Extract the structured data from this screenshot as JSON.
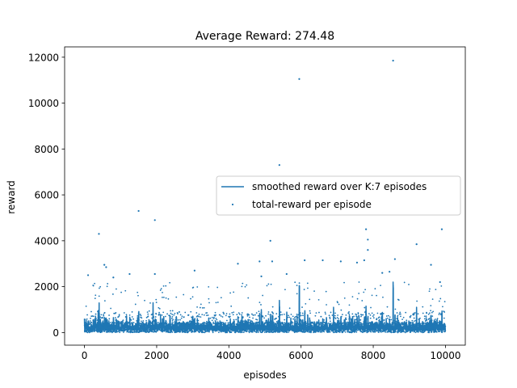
{
  "chart_data": {
    "type": "scatter",
    "title": "Average Reward: 274.48",
    "xlabel": "episodes",
    "ylabel": "reward",
    "xlim": [
      -550,
      10550
    ],
    "ylim": [
      -550,
      12450
    ],
    "xticks": [
      0,
      2000,
      4000,
      6000,
      8000,
      10000
    ],
    "xtick_labels": [
      "0",
      "2000",
      "4000",
      "6000",
      "8000",
      "10000"
    ],
    "yticks": [
      0,
      2000,
      4000,
      6000,
      8000,
      10000,
      12000
    ],
    "ytick_labels": [
      "0",
      "2000",
      "4000",
      "6000",
      "8000",
      "10000",
      "12000"
    ],
    "grid": false,
    "legend": {
      "placement": "center-right",
      "entries": [
        {
          "label": "smoothed reward over K:7 episodes",
          "marker": "line"
        },
        {
          "label": "total-reward per episode",
          "marker": "point"
        }
      ]
    },
    "colors": {
      "series": "#1f77b4",
      "axes": "#000000"
    },
    "episodes": 10000,
    "series": [
      {
        "name": "smoothed reward over K:7 episodes",
        "kind": "line",
        "spikes": [
          {
            "x": 380,
            "y": 950
          },
          {
            "x": 1900,
            "y": 1300
          },
          {
            "x": 4900,
            "y": 1000
          },
          {
            "x": 5400,
            "y": 1400
          },
          {
            "x": 5950,
            "y": 2050
          },
          {
            "x": 6900,
            "y": 1100
          },
          {
            "x": 7800,
            "y": 1150
          },
          {
            "x": 8550,
            "y": 2200
          },
          {
            "x": 9200,
            "y": 1100
          }
        ]
      },
      {
        "name": "total-reward per episode",
        "kind": "scatter",
        "outliers": [
          {
            "x": 8550,
            "y": 11850
          },
          {
            "x": 5950,
            "y": 11050
          },
          {
            "x": 5400,
            "y": 7300
          },
          {
            "x": 1500,
            "y": 5300
          },
          {
            "x": 1950,
            "y": 4900
          },
          {
            "x": 7800,
            "y": 4500
          },
          {
            "x": 9900,
            "y": 4500
          },
          {
            "x": 400,
            "y": 4300
          },
          {
            "x": 7850,
            "y": 4050
          },
          {
            "x": 5150,
            "y": 4000
          },
          {
            "x": 9200,
            "y": 3850
          },
          {
            "x": 7850,
            "y": 3600
          },
          {
            "x": 4250,
            "y": 3000
          },
          {
            "x": 550,
            "y": 2950
          },
          {
            "x": 600,
            "y": 2850
          },
          {
            "x": 4850,
            "y": 3100
          },
          {
            "x": 5200,
            "y": 3100
          },
          {
            "x": 6600,
            "y": 3150
          },
          {
            "x": 7100,
            "y": 3100
          },
          {
            "x": 7550,
            "y": 3050
          },
          {
            "x": 7750,
            "y": 3150
          },
          {
            "x": 8600,
            "y": 3200
          },
          {
            "x": 9600,
            "y": 2950
          },
          {
            "x": 3050,
            "y": 2700
          },
          {
            "x": 1250,
            "y": 2550
          },
          {
            "x": 100,
            "y": 2500
          },
          {
            "x": 800,
            "y": 2400
          },
          {
            "x": 1950,
            "y": 2550
          },
          {
            "x": 5600,
            "y": 2550
          },
          {
            "x": 6100,
            "y": 3150
          },
          {
            "x": 8250,
            "y": 2600
          },
          {
            "x": 8450,
            "y": 2650
          },
          {
            "x": 9850,
            "y": 2200
          },
          {
            "x": 4900,
            "y": 2450
          }
        ]
      }
    ]
  }
}
